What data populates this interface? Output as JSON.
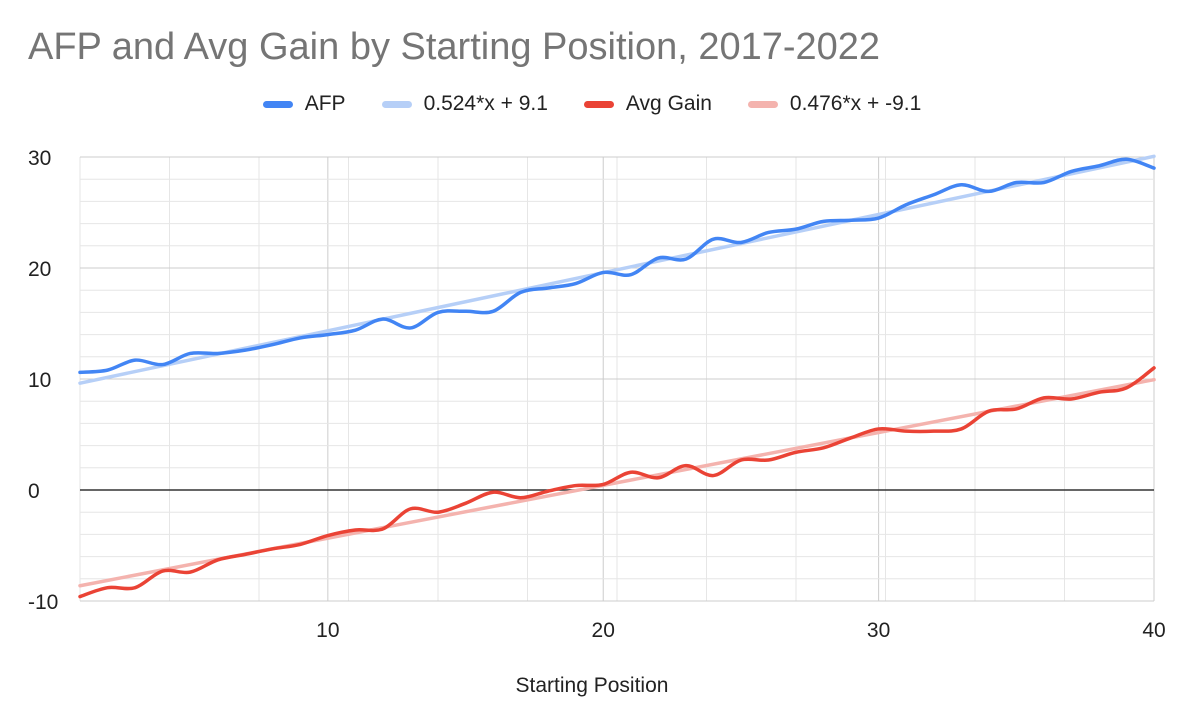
{
  "chart_data": {
    "type": "line",
    "title": "AFP and Avg Gain by Starting Position, 2017-2022",
    "xlabel": "Starting Position",
    "ylabel": "",
    "xlim": [
      1,
      40
    ],
    "ylim": [
      -10,
      30
    ],
    "x_ticks": [
      "10",
      "20",
      "30",
      "40"
    ],
    "y_ticks": [
      "30",
      "20",
      "10",
      "0",
      "-10"
    ],
    "grid": true,
    "legend_position": "top",
    "x": [
      1,
      2,
      3,
      4,
      5,
      6,
      7,
      8,
      9,
      10,
      11,
      12,
      13,
      14,
      15,
      16,
      17,
      18,
      19,
      20,
      21,
      22,
      23,
      24,
      25,
      26,
      27,
      28,
      29,
      30,
      31,
      32,
      33,
      34,
      35,
      36,
      37,
      38,
      39,
      40
    ],
    "series": [
      {
        "name": "AFP",
        "kind": "data",
        "color": "#4285f4",
        "values": [
          10.6,
          10.8,
          11.7,
          11.3,
          12.3,
          12.3,
          12.6,
          13.1,
          13.7,
          14.0,
          14.4,
          15.4,
          14.6,
          16.0,
          16.1,
          16.1,
          17.8,
          18.2,
          18.6,
          19.6,
          19.4,
          20.9,
          20.8,
          22.6,
          22.3,
          23.2,
          23.5,
          24.2,
          24.3,
          24.5,
          25.7,
          26.6,
          27.5,
          26.9,
          27.7,
          27.7,
          28.7,
          29.2,
          29.8,
          29.0
        ]
      },
      {
        "name": "0.524*x + 9.1",
        "kind": "trend",
        "color": "#b6cff7",
        "slope": 0.524,
        "intercept": 9.1
      },
      {
        "name": "Avg Gain",
        "kind": "data",
        "color": "#ea4335",
        "values": [
          -9.6,
          -8.8,
          -8.8,
          -7.3,
          -7.4,
          -6.3,
          -5.8,
          -5.3,
          -4.9,
          -4.1,
          -3.6,
          -3.5,
          -1.7,
          -2.0,
          -1.2,
          -0.2,
          -0.7,
          -0.1,
          0.4,
          0.5,
          1.6,
          1.1,
          2.2,
          1.3,
          2.7,
          2.7,
          3.4,
          3.8,
          4.7,
          5.5,
          5.3,
          5.3,
          5.5,
          7.1,
          7.3,
          8.3,
          8.2,
          8.8,
          9.2,
          11.0
        ]
      },
      {
        "name": "0.476*x + -9.1",
        "kind": "trend",
        "color": "#f4b3ae",
        "slope": 0.476,
        "intercept": -9.1
      }
    ]
  }
}
